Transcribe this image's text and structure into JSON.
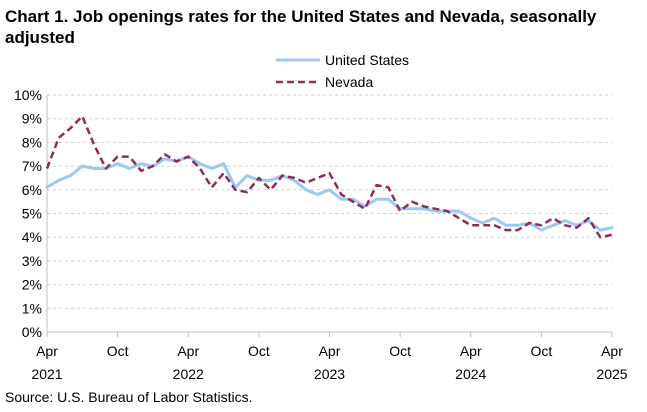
{
  "page": {
    "title": "Chart 1. Job openings rates for the United States and Nevada, seasonally adjusted",
    "source": "Source: U.S. Bureau of Labor Statistics."
  },
  "chart_data": {
    "type": "line",
    "title": "Chart 1. Job openings rates for the United States and Nevada, seasonally adjusted",
    "xlabel": "",
    "ylabel": "",
    "ylim": [
      0,
      10
    ],
    "grid": true,
    "legend_position": "top-right",
    "y_ticks": [
      {
        "value": 0,
        "label": "0%"
      },
      {
        "value": 1,
        "label": "1%"
      },
      {
        "value": 2,
        "label": "2%"
      },
      {
        "value": 3,
        "label": "3%"
      },
      {
        "value": 4,
        "label": "4%"
      },
      {
        "value": 5,
        "label": "5%"
      },
      {
        "value": 6,
        "label": "6%"
      },
      {
        "value": 7,
        "label": "7%"
      },
      {
        "value": 8,
        "label": "8%"
      },
      {
        "value": 9,
        "label": "9%"
      },
      {
        "value": 10,
        "label": "10%"
      }
    ],
    "x_ticks": [
      {
        "index": 0,
        "month": "Apr",
        "year": "2021"
      },
      {
        "index": 6,
        "month": "Oct",
        "year": ""
      },
      {
        "index": 12,
        "month": "Apr",
        "year": "2022"
      },
      {
        "index": 18,
        "month": "Oct",
        "year": ""
      },
      {
        "index": 24,
        "month": "Apr",
        "year": "2023"
      },
      {
        "index": 30,
        "month": "Oct",
        "year": ""
      },
      {
        "index": 36,
        "month": "Apr",
        "year": "2024"
      },
      {
        "index": 42,
        "month": "Oct",
        "year": ""
      },
      {
        "index": 48,
        "month": "Apr",
        "year": "2025"
      }
    ],
    "series": [
      {
        "name": "United States",
        "color": "#9dc8ef",
        "style": "solid",
        "values": [
          6.1,
          6.4,
          6.6,
          7.0,
          6.9,
          6.9,
          7.1,
          6.9,
          7.1,
          7.0,
          7.3,
          7.2,
          7.4,
          7.1,
          6.9,
          7.1,
          6.1,
          6.6,
          6.4,
          6.4,
          6.6,
          6.4,
          6.0,
          5.8,
          6.0,
          5.6,
          5.6,
          5.3,
          5.6,
          5.6,
          5.2,
          5.2,
          5.2,
          5.1,
          5.1,
          5.1,
          4.8,
          4.6,
          4.8,
          4.5,
          4.5,
          4.6,
          4.3,
          4.5,
          4.7,
          4.5,
          4.7,
          4.3,
          4.4
        ]
      },
      {
        "name": "Nevada",
        "color": "#8e2c5a",
        "style": "dashed",
        "values": [
          6.9,
          8.2,
          8.6,
          9.1,
          7.9,
          6.9,
          7.4,
          7.4,
          6.8,
          7.0,
          7.5,
          7.2,
          7.4,
          6.9,
          6.1,
          6.7,
          6.0,
          5.9,
          6.5,
          6.0,
          6.6,
          6.5,
          6.3,
          6.5,
          6.7,
          5.8,
          5.5,
          5.2,
          6.2,
          6.1,
          5.1,
          5.5,
          5.3,
          5.2,
          5.1,
          4.8,
          4.5,
          4.5,
          4.5,
          4.3,
          4.3,
          4.6,
          4.5,
          4.8,
          4.5,
          4.4,
          4.8,
          4.0,
          4.1
        ]
      }
    ]
  }
}
